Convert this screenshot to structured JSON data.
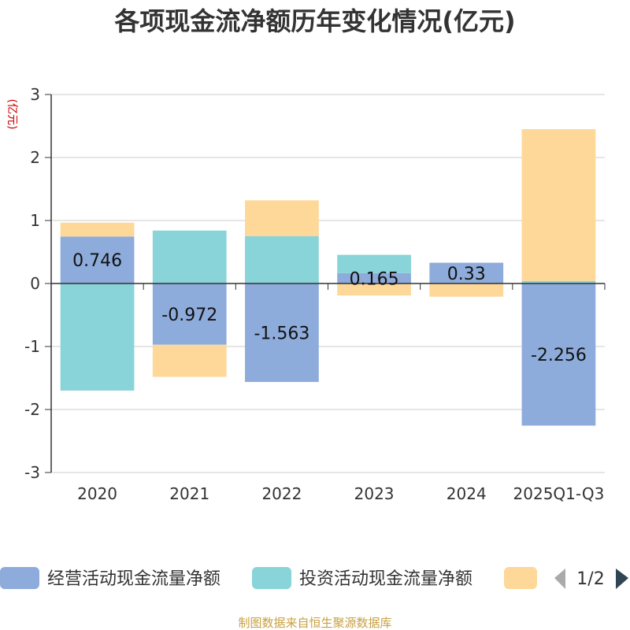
{
  "chart_data": {
    "type": "bar",
    "stacked": true,
    "title": "各项现金流净额历年变化情况(亿元)",
    "ylabel": "(亿元)",
    "categories": [
      "2020",
      "2021",
      "2022",
      "2023",
      "2024",
      "2025Q1-Q3"
    ],
    "ylim": [
      -3,
      3
    ],
    "yticks": [
      "3",
      "2",
      "1",
      "0",
      "-1",
      "-2",
      "-3"
    ],
    "grid": true,
    "series": [
      {
        "name": "经营活动现金流量净额",
        "color": "#8eacdb",
        "values": [
          0.746,
          -0.972,
          -1.563,
          0.165,
          0.33,
          -2.256
        ],
        "labels": [
          "0.746",
          "-0.972",
          "-1.563",
          "0.165",
          "0.33",
          "-2.256"
        ]
      },
      {
        "name": "投资活动现金流量净额",
        "color": "#88d4d8",
        "values": [
          -1.7,
          0.84,
          0.75,
          0.29,
          0.0,
          0.04
        ]
      },
      {
        "name": "",
        "color": "#fdd898",
        "values": [
          0.22,
          -0.51,
          0.57,
          -0.19,
          -0.21,
          2.41
        ]
      }
    ],
    "legend": {
      "placement": "bottom",
      "page": "1/2"
    },
    "source": "制图数据来自恒生聚源数据库"
  }
}
